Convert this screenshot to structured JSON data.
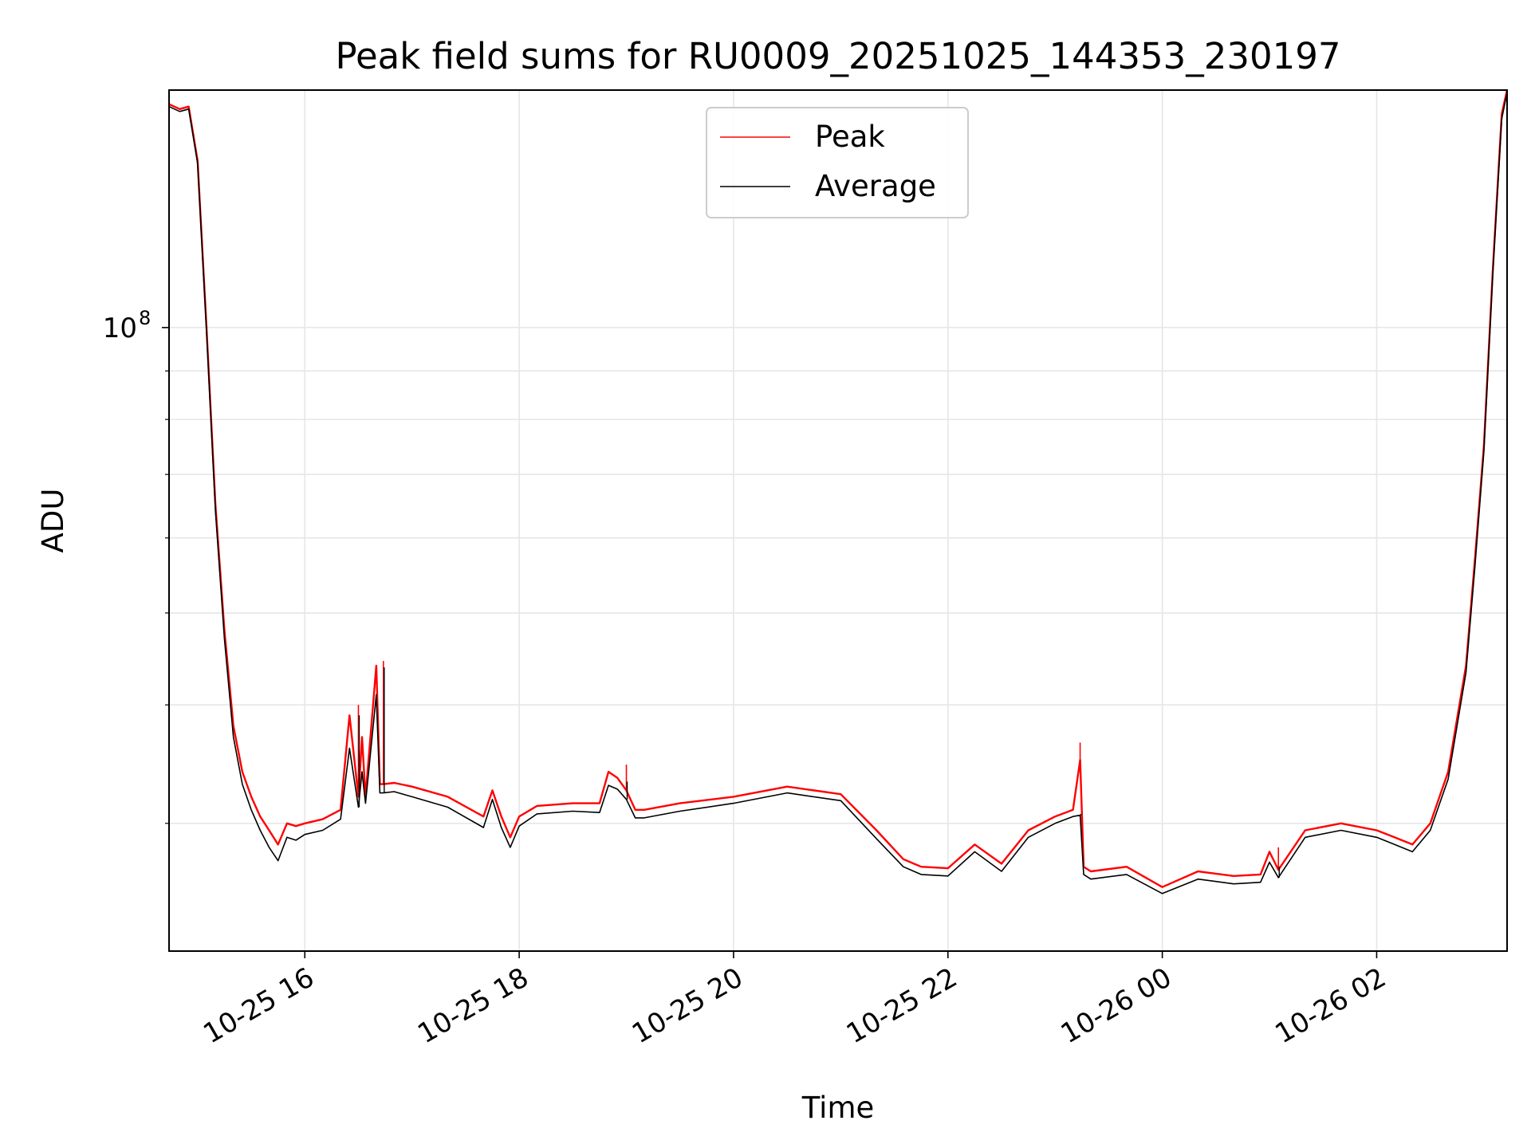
{
  "chart_data": {
    "type": "line",
    "title": "Peak field sums for RU0009_20251025_144353_230197",
    "xlabel": "Time",
    "ylabel": "ADU",
    "y_scale": "log",
    "x_tick_labels": [
      "10-25 16",
      "10-25 18",
      "10-25 20",
      "10-25 22",
      "10-26 00",
      "10-26 02"
    ],
    "y_tick_label_base": "10",
    "y_tick_label_exp": "8",
    "xlim": [
      "2025-10-25 14:44",
      "2025-10-26 03:13"
    ],
    "ylim": [
      22000000,
      178000000
    ],
    "grid": true,
    "legend_position": "upper center",
    "series": [
      {
        "name": "Peak",
        "color": "#ff0000",
        "x": [
          "2025-10-25 14:44",
          "2025-10-25 14:50",
          "2025-10-25 14:55",
          "2025-10-25 15:00",
          "2025-10-25 15:05",
          "2025-10-25 15:10",
          "2025-10-25 15:15",
          "2025-10-25 15:20",
          "2025-10-25 15:25",
          "2025-10-25 15:30",
          "2025-10-25 15:35",
          "2025-10-25 15:40",
          "2025-10-25 15:45",
          "2025-10-25 15:50",
          "2025-10-25 15:55",
          "2025-10-25 16:00",
          "2025-10-25 16:10",
          "2025-10-25 16:20",
          "2025-10-25 16:25",
          "2025-10-25 16:30",
          "2025-10-25 16:32",
          "2025-10-25 16:34",
          "2025-10-25 16:40",
          "2025-10-25 16:42",
          "2025-10-25 16:44",
          "2025-10-25 16:50",
          "2025-10-25 17:00",
          "2025-10-25 17:20",
          "2025-10-25 17:40",
          "2025-10-25 17:45",
          "2025-10-25 17:50",
          "2025-10-25 17:55",
          "2025-10-25 18:00",
          "2025-10-25 18:10",
          "2025-10-25 18:30",
          "2025-10-25 18:45",
          "2025-10-25 18:50",
          "2025-10-25 18:55",
          "2025-10-25 19:00",
          "2025-10-25 19:05",
          "2025-10-25 19:10",
          "2025-10-25 19:30",
          "2025-10-25 20:00",
          "2025-10-25 20:30",
          "2025-10-25 21:00",
          "2025-10-25 21:20",
          "2025-10-25 21:35",
          "2025-10-25 21:45",
          "2025-10-25 22:00",
          "2025-10-25 22:15",
          "2025-10-25 22:30",
          "2025-10-25 22:45",
          "2025-10-25 23:00",
          "2025-10-25 23:10",
          "2025-10-25 23:14",
          "2025-10-25 23:16",
          "2025-10-25 23:20",
          "2025-10-25 23:40",
          "2025-10-26 00:00",
          "2025-10-26 00:20",
          "2025-10-26 00:40",
          "2025-10-26 00:55",
          "2025-10-26 01:00",
          "2025-10-26 01:05",
          "2025-10-26 01:20",
          "2025-10-26 01:40",
          "2025-10-26 02:00",
          "2025-10-26 02:10",
          "2025-10-26 02:20",
          "2025-10-26 02:30",
          "2025-10-26 02:40",
          "2025-10-26 02:50",
          "2025-10-26 02:55",
          "2025-10-26 03:00",
          "2025-10-26 03:05",
          "2025-10-26 03:10",
          "2025-10-26 03:13"
        ],
        "y": [
          172000000,
          170000000,
          171000000,
          150000000,
          100000000,
          65000000,
          48000000,
          38000000,
          34000000,
          32000000,
          30500000,
          29500000,
          28500000,
          30000000,
          29800000,
          30000000,
          30300000,
          31000000,
          39000000,
          32000000,
          37000000,
          32000000,
          44000000,
          33000000,
          33000000,
          33100000,
          32800000,
          32000000,
          30500000,
          32500000,
          30500000,
          29000000,
          30500000,
          31300000,
          31500000,
          31500000,
          34000000,
          33500000,
          32500000,
          31000000,
          31000000,
          31500000,
          32000000,
          32800000,
          32200000,
          29500000,
          27500000,
          27000000,
          26900000,
          28500000,
          27200000,
          29500000,
          30500000,
          31000000,
          35000000,
          27000000,
          26700000,
          27000000,
          25700000,
          26700000,
          26400000,
          26500000,
          28000000,
          26800000,
          29500000,
          30000000,
          29500000,
          29000000,
          28500000,
          30000000,
          34000000,
          44000000,
          57000000,
          75000000,
          115000000,
          168000000,
          178000000
        ]
      },
      {
        "name": "Average",
        "color": "#000000",
        "x": [
          "2025-10-25 14:44",
          "2025-10-25 14:50",
          "2025-10-25 14:55",
          "2025-10-25 15:00",
          "2025-10-25 15:05",
          "2025-10-25 15:10",
          "2025-10-25 15:15",
          "2025-10-25 15:20",
          "2025-10-25 15:25",
          "2025-10-25 15:30",
          "2025-10-25 15:35",
          "2025-10-25 15:40",
          "2025-10-25 15:45",
          "2025-10-25 15:50",
          "2025-10-25 15:55",
          "2025-10-25 16:00",
          "2025-10-25 16:10",
          "2025-10-25 16:20",
          "2025-10-25 16:25",
          "2025-10-25 16:30",
          "2025-10-25 16:32",
          "2025-10-25 16:34",
          "2025-10-25 16:40",
          "2025-10-25 16:42",
          "2025-10-25 16:44",
          "2025-10-25 16:50",
          "2025-10-25 17:00",
          "2025-10-25 17:20",
          "2025-10-25 17:40",
          "2025-10-25 17:45",
          "2025-10-25 17:50",
          "2025-10-25 17:55",
          "2025-10-25 18:00",
          "2025-10-25 18:10",
          "2025-10-25 18:30",
          "2025-10-25 18:45",
          "2025-10-25 18:50",
          "2025-10-25 18:55",
          "2025-10-25 19:00",
          "2025-10-25 19:05",
          "2025-10-25 19:10",
          "2025-10-25 19:30",
          "2025-10-25 20:00",
          "2025-10-25 20:30",
          "2025-10-25 21:00",
          "2025-10-25 21:20",
          "2025-10-25 21:35",
          "2025-10-25 21:45",
          "2025-10-25 22:00",
          "2025-10-25 22:15",
          "2025-10-25 22:30",
          "2025-10-25 22:45",
          "2025-10-25 23:00",
          "2025-10-25 23:10",
          "2025-10-25 23:14",
          "2025-10-25 23:16",
          "2025-10-25 23:20",
          "2025-10-25 23:40",
          "2025-10-26 00:00",
          "2025-10-26 00:20",
          "2025-10-26 00:40",
          "2025-10-26 00:55",
          "2025-10-26 01:00",
          "2025-10-26 01:05",
          "2025-10-26 01:20",
          "2025-10-26 01:40",
          "2025-10-26 02:00",
          "2025-10-26 02:10",
          "2025-10-26 02:20",
          "2025-10-26 02:30",
          "2025-10-26 02:40",
          "2025-10-26 02:50",
          "2025-10-26 02:55",
          "2025-10-26 03:00",
          "2025-10-26 03:05",
          "2025-10-26 03:10",
          "2025-10-26 03:13"
        ],
        "y": [
          171000000,
          169000000,
          170000000,
          149000000,
          99000000,
          64000000,
          47000000,
          37000000,
          33000000,
          31000000,
          29500000,
          28300000,
          27400000,
          29000000,
          28800000,
          29200000,
          29500000,
          30300000,
          36000000,
          31200000,
          34000000,
          31500000,
          41000000,
          32300000,
          32300000,
          32400000,
          32000000,
          31200000,
          29700000,
          31800000,
          29700000,
          28300000,
          29800000,
          30700000,
          30900000,
          30800000,
          32900000,
          32600000,
          31800000,
          30400000,
          30400000,
          30900000,
          31500000,
          32300000,
          31700000,
          28900000,
          27000000,
          26500000,
          26400000,
          28000000,
          26700000,
          29000000,
          30000000,
          30500000,
          30600000,
          26500000,
          26200000,
          26500000,
          25300000,
          26200000,
          25900000,
          26000000,
          27300000,
          26300000,
          29000000,
          29500000,
          29000000,
          28500000,
          28000000,
          29500000,
          33400000,
          43300000,
          56000000,
          74000000,
          114000000,
          166000000,
          177000000
        ]
      }
    ],
    "spikes": [
      {
        "x": "2025-10-25 16:30",
        "peak": 40000000,
        "average": 39000000
      },
      {
        "x": "2025-10-25 16:44",
        "peak": 44500000,
        "average": 43800000
      },
      {
        "x": "2025-10-25 23:14",
        "peak": 36500000,
        "average": 30700000
      },
      {
        "x": "2025-10-25 19:00",
        "peak": 34600000,
        "average": 33200000
      },
      {
        "x": "2025-10-26 01:05",
        "peak": 28300000,
        "average": 27000000
      }
    ]
  }
}
